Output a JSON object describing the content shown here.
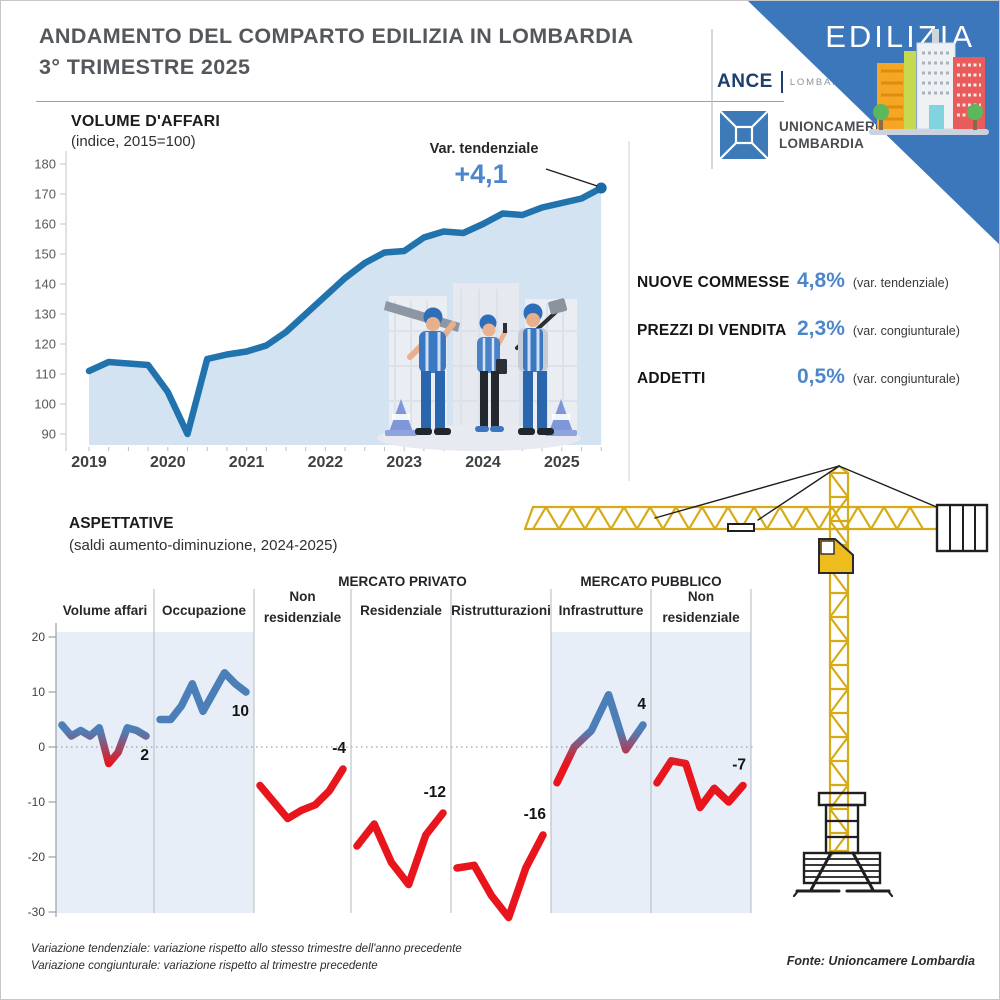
{
  "header": {
    "title_line1": "ANDAMENTO DEL COMPARTO EDILIZIA IN LOMBARDIA",
    "title_line2": "3° TRIMESTRE 2025"
  },
  "corner": {
    "label": "EDILIZIA",
    "triangle_color": "#3b77ba"
  },
  "logos": {
    "ance_name": "ANCE",
    "ance_region": "LOMBARDIA",
    "unioncamere_line1": "UNIONCAMERE",
    "unioncamere_line2": "LOMBARDIA"
  },
  "volume_chart": {
    "title": "VOLUME D'AFFARI",
    "subtitle": "(indice, 2015=100)",
    "annotation_label": "Var. tendenziale",
    "annotation_value": "+4,1"
  },
  "stats": [
    {
      "label": "NUOVE COMMESSE",
      "value": "4,8%",
      "note": "(var. tendenziale)"
    },
    {
      "label": "PREZZI DI VENDITA",
      "value": "2,3%",
      "note": "(var. congiunturale)"
    },
    {
      "label": "ADDETTI",
      "value": "0,5%",
      "note": "(var. congiunturale)"
    }
  ],
  "aspettative": {
    "title": "ASPETTATIVE",
    "subtitle": "(saldi aumento-diminuzione, 2024-2025)"
  },
  "footnotes": [
    "Variazione tendenziale: variazione rispetto allo stesso trimestre dell'anno precedente",
    "Variazione congiunturale: variazione rispetto al trimestre precedente"
  ],
  "source": "Fonte: Unioncamere Lombardia",
  "chart_data": [
    {
      "type": "area",
      "title": "VOLUME D'AFFARI (indice, 2015=100)",
      "frequency": "quarterly",
      "start": "2019-Q1",
      "end": "2025-Q3",
      "values": [
        111,
        114,
        113.5,
        113,
        104,
        90,
        115,
        116.5,
        117.5,
        119.5,
        124,
        130,
        136,
        142,
        147,
        150.5,
        151,
        155.5,
        157.5,
        157,
        160,
        163.5,
        163,
        165.5,
        167,
        168.5,
        172
      ],
      "year_labels": [
        "2019",
        "2020",
        "2021",
        "2022",
        "2023",
        "2024",
        "2025"
      ],
      "yticks": [
        90,
        100,
        110,
        120,
        130,
        140,
        150,
        160,
        170,
        180
      ],
      "ylim": [
        85,
        183
      ],
      "annotation": {
        "label": "Var. tendenziale",
        "value": "+4,1",
        "points_to": "last"
      },
      "line_color": "#2173ae",
      "fill_color": "#d4e3f1",
      "marker_color": "#1b6aa8"
    },
    {
      "type": "line-small-multiples",
      "subtitle": "saldi aumento-diminuzione, 2024-2025",
      "ylim": [
        -30,
        22
      ],
      "yticks": [
        20,
        10,
        0,
        -10,
        -20,
        -30
      ],
      "zero_line": true,
      "pos_color": "#4c7fb8",
      "neg_color": "#e9151d",
      "shade_color": "#e8eef7",
      "groups": [
        {
          "label": "MERCATO PRIVATO",
          "span": [
            2,
            4
          ]
        },
        {
          "label": "MERCATO PUBBLICO",
          "span": [
            5,
            6
          ]
        }
      ],
      "panels": [
        {
          "title": [
            "Volume affari"
          ],
          "values": [
            4,
            2,
            3,
            2,
            3.5,
            -3,
            -1,
            3.5,
            3,
            2
          ],
          "end_label": "2",
          "label_side": "below",
          "shaded": true
        },
        {
          "title": [
            "Occupazione"
          ],
          "values": [
            5,
            5,
            7.5,
            11.5,
            6.5,
            10,
            13.5,
            11.5,
            10
          ],
          "end_label": "10",
          "label_side": "below",
          "shaded": true
        },
        {
          "title": [
            "Non",
            "residenziale"
          ],
          "values": [
            -7,
            -10,
            -13,
            -11.5,
            -10.5,
            -8,
            -4
          ],
          "end_label": "-4",
          "label_side": "above",
          "shaded": false
        },
        {
          "title": [
            "Residenziale"
          ],
          "values": [
            -18,
            -14,
            -21,
            -25,
            -16,
            -12
          ],
          "end_label": "-12",
          "label_side": "above",
          "shaded": false
        },
        {
          "title": [
            "Ristrutturazioni"
          ],
          "values": [
            -22,
            -21.5,
            -27,
            -31,
            -22,
            -16
          ],
          "end_label": "-16",
          "label_side": "above",
          "shaded": false
        },
        {
          "title": [
            "Infrastrutture"
          ],
          "values": [
            -6.5,
            0,
            3,
            9.5,
            -0.5,
            4
          ],
          "end_label": "4",
          "label_side": "above",
          "shaded": true
        },
        {
          "title": [
            "Non",
            "residenziale"
          ],
          "values": [
            -6.5,
            -2.5,
            -3,
            -11,
            -7.5,
            -10,
            -7
          ],
          "end_label": "-7",
          "label_side": "above",
          "shaded": true
        }
      ]
    }
  ]
}
